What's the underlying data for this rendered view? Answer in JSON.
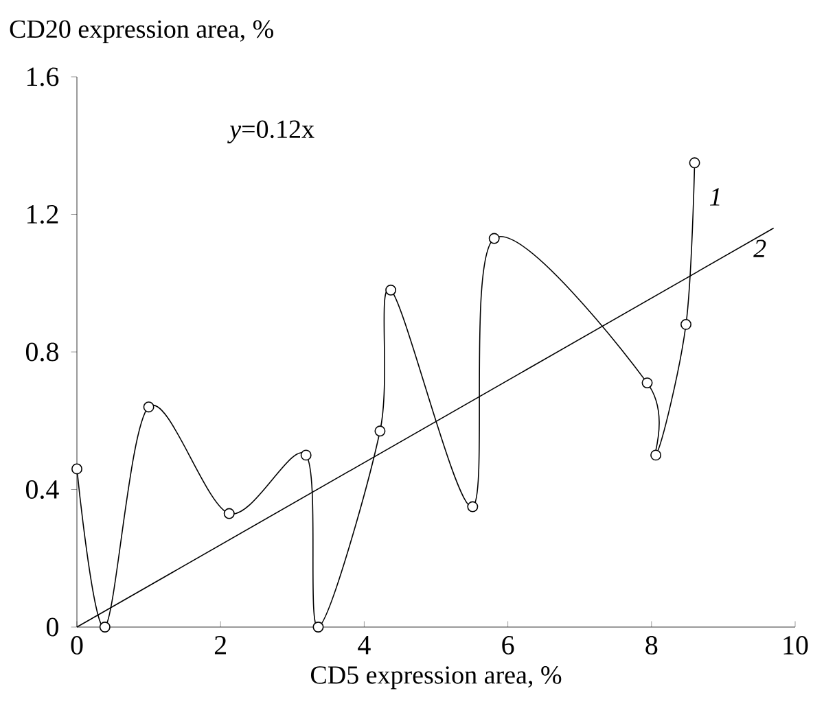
{
  "chart_data": {
    "type": "line",
    "xlabel": "CD5 expression area, %",
    "ylabel": "CD20 expression area, %",
    "annotations": [
      "*y*=0.12x"
    ],
    "xlim": [
      0,
      10
    ],
    "ylim": [
      0,
      1.6
    ],
    "xticks": [
      0,
      2,
      4,
      6,
      8,
      10
    ],
    "yticks": [
      0,
      0.4,
      0.8,
      1.2,
      1.6
    ],
    "series": [
      {
        "name": "1",
        "color": "#000000",
        "marker": "circle",
        "x": [
          0,
          0.39,
          1.0,
          2.12,
          3.19,
          3.36,
          4.22,
          4.37,
          5.51,
          5.81,
          7.94,
          8.06,
          8.48,
          8.6
        ],
        "values": [
          0.46,
          0,
          0.64,
          0.33,
          0.5,
          0,
          0.57,
          0.98,
          0.35,
          1.13,
          0.71,
          0.5,
          0.88,
          1.35
        ]
      },
      {
        "name": "2",
        "color": "#000000",
        "x": [
          0,
          9.7
        ],
        "values": [
          0,
          1.16
        ]
      }
    ]
  }
}
